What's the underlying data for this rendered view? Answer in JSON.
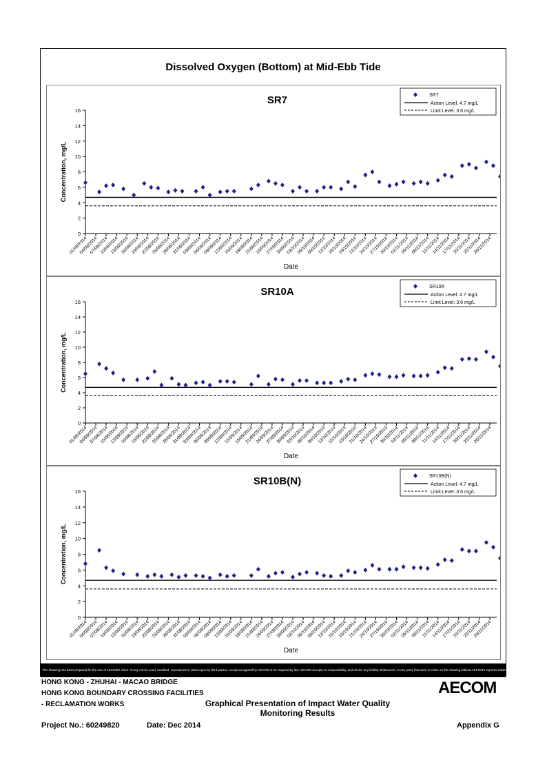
{
  "page_title": "Dissolved Oxygen (Bottom) at Mid-Ebb Tide",
  "disclaimer": "This Drawing has been prepared for the use of AECOM's client. It may not be used, modified, reproduced or relied upon by third parties, except as agreed by AECOM or as required by law. AECOM accepts no responsibility, and denies any liability whatsoever, to any party that uses or relies on this drawing without AECOM's express written consent.",
  "footer": {
    "project_line1": "HONG KONG - ZHUHAI - MACAO BRIDGE",
    "project_line2": "HONG KONG BOUNDARY CROSSING FACILITIES",
    "project_line3": "- RECLAMATION WORKS",
    "caption_line1": "Graphical Presentation of Impact Water Quality",
    "caption_line2": "Monitoring Results",
    "project_no": "Project No.: 60249820",
    "date": "Date: Dec 2014",
    "appendix": "Appendix G",
    "logo": "AECOM"
  },
  "colors": {
    "marker": "#1f1f8f",
    "line": "#000000",
    "frame": "#000000"
  },
  "chart_data": [
    {
      "type": "scatter",
      "title": "SR7",
      "xlabel": "Date",
      "ylabel": "Concentration, mg/L",
      "ylim": [
        0,
        16
      ],
      "yticks": [
        "0",
        "2",
        "4",
        "6",
        "8",
        "10",
        "12",
        "14",
        "16"
      ],
      "xlim": [
        "2014-08-01",
        "2014-11-28"
      ],
      "xticks": [
        "01/08/2014",
        "04/08/2014",
        "07/08/2014",
        "10/08/2014",
        "13/08/2014",
        "16/08/2014",
        "19/08/2014",
        "22/08/2014",
        "25/08/2014",
        "28/08/2014",
        "31/08/2014",
        "03/09/2014",
        "06/09/2014",
        "09/09/2014",
        "12/09/2014",
        "15/09/2014",
        "18/09/2014",
        "21/09/2014",
        "24/09/2014",
        "27/09/2014",
        "30/09/2014",
        "03/10/2014",
        "06/10/2014",
        "09/10/2014",
        "12/10/2014",
        "15/10/2014",
        "18/10/2014",
        "21/10/2014",
        "24/10/2014",
        "27/10/2014",
        "30/10/2014",
        "02/11/2014",
        "05/11/2014",
        "08/11/2014",
        "11/11/2014",
        "14/11/2014",
        "17/11/2014",
        "20/11/2014",
        "23/11/2014",
        "26/11/2014"
      ],
      "legend_position": "top-right",
      "legend": [
        "SR7",
        "Action Level: 4.7 mg/L",
        "Limit Level: 3.6 mg/L"
      ],
      "action_level": 4.7,
      "limit_level": 3.6,
      "series": [
        {
          "name": "SR7",
          "points": [
            [
              "2014-08-01",
              6.6
            ],
            [
              "2014-08-05",
              5.4
            ],
            [
              "2014-08-07",
              6.2
            ],
            [
              "2014-08-09",
              6.3
            ],
            [
              "2014-08-12",
              5.8
            ],
            [
              "2014-08-15",
              5.0
            ],
            [
              "2014-08-18",
              6.5
            ],
            [
              "2014-08-20",
              6.0
            ],
            [
              "2014-08-22",
              5.9
            ],
            [
              "2014-08-25",
              5.4
            ],
            [
              "2014-08-27",
              5.6
            ],
            [
              "2014-08-29",
              5.5
            ],
            [
              "2014-09-02",
              5.5
            ],
            [
              "2014-09-04",
              6.0
            ],
            [
              "2014-09-06",
              5.0
            ],
            [
              "2014-09-09",
              5.4
            ],
            [
              "2014-09-11",
              5.5
            ],
            [
              "2014-09-13",
              5.5
            ],
            [
              "2014-09-18",
              5.8
            ],
            [
              "2014-09-20",
              6.3
            ],
            [
              "2014-09-23",
              6.8
            ],
            [
              "2014-09-25",
              6.5
            ],
            [
              "2014-09-27",
              6.3
            ],
            [
              "2014-09-30",
              5.5
            ],
            [
              "2014-10-02",
              6.0
            ],
            [
              "2014-10-04",
              5.5
            ],
            [
              "2014-10-07",
              5.5
            ],
            [
              "2014-10-09",
              6.0
            ],
            [
              "2014-10-11",
              6.0
            ],
            [
              "2014-10-14",
              5.8
            ],
            [
              "2014-10-16",
              6.7
            ],
            [
              "2014-10-18",
              6.1
            ],
            [
              "2014-10-21",
              7.6
            ],
            [
              "2014-10-23",
              8.0
            ],
            [
              "2014-10-25",
              6.7
            ],
            [
              "2014-10-28",
              6.2
            ],
            [
              "2014-10-30",
              6.4
            ],
            [
              "2014-11-01",
              6.7
            ],
            [
              "2014-11-04",
              6.5
            ],
            [
              "2014-11-06",
              6.7
            ],
            [
              "2014-11-08",
              6.5
            ],
            [
              "2014-11-11",
              6.9
            ],
            [
              "2014-11-13",
              7.6
            ],
            [
              "2014-11-15",
              7.4
            ],
            [
              "2014-11-18",
              8.8
            ],
            [
              "2014-11-20",
              9.0
            ],
            [
              "2014-11-22",
              8.5
            ],
            [
              "2014-11-25",
              9.3
            ],
            [
              "2014-11-27",
              8.8
            ],
            [
              "2014-11-29",
              7.4
            ]
          ]
        }
      ]
    },
    {
      "type": "scatter",
      "title": "SR10A",
      "xlabel": "Date",
      "ylabel": "Concentration, mg/L",
      "ylim": [
        0,
        16
      ],
      "yticks": [
        "0",
        "2",
        "4",
        "6",
        "8",
        "10",
        "12",
        "14",
        "16"
      ],
      "xlim": [
        "2014-08-01",
        "2014-11-28"
      ],
      "xticks": [
        "01/08/2014",
        "04/08/2014",
        "07/08/2014",
        "10/08/2014",
        "13/08/2014",
        "16/08/2014",
        "19/08/2014",
        "22/08/2014",
        "25/08/2014",
        "28/08/2014",
        "31/08/2014",
        "03/09/2014",
        "06/09/2014",
        "09/09/2014",
        "12/09/2014",
        "15/09/2014",
        "18/09/2014",
        "21/09/2014",
        "24/09/2014",
        "27/09/2014",
        "30/09/2014",
        "03/10/2014",
        "06/10/2014",
        "09/10/2014",
        "12/10/2014",
        "15/10/2014",
        "18/10/2014",
        "21/10/2014",
        "24/10/2014",
        "27/10/2014",
        "30/10/2014",
        "02/11/2014",
        "05/11/2014",
        "08/11/2014",
        "11/11/2014",
        "14/11/2014",
        "17/11/2014",
        "20/11/2014",
        "23/11/2014",
        "26/11/2014"
      ],
      "legend_position": "top-right",
      "legend": [
        "SR10A",
        "Action Level: 4.7 mg/L",
        "Limit Level: 3.6 mg/L"
      ],
      "action_level": 4.7,
      "limit_level": 3.6,
      "series": [
        {
          "name": "SR10A",
          "points": [
            [
              "2014-08-01",
              6.5
            ],
            [
              "2014-08-05",
              7.8
            ],
            [
              "2014-08-07",
              7.2
            ],
            [
              "2014-08-09",
              6.6
            ],
            [
              "2014-08-12",
              5.7
            ],
            [
              "2014-08-16",
              5.7
            ],
            [
              "2014-08-19",
              5.9
            ],
            [
              "2014-08-21",
              6.8
            ],
            [
              "2014-08-23",
              5.0
            ],
            [
              "2014-08-26",
              5.9
            ],
            [
              "2014-08-28",
              5.1
            ],
            [
              "2014-08-30",
              5.0
            ],
            [
              "2014-09-02",
              5.3
            ],
            [
              "2014-09-04",
              5.4
            ],
            [
              "2014-09-06",
              5.0
            ],
            [
              "2014-09-09",
              5.5
            ],
            [
              "2014-09-11",
              5.5
            ],
            [
              "2014-09-13",
              5.4
            ],
            [
              "2014-09-18",
              5.1
            ],
            [
              "2014-09-20",
              6.2
            ],
            [
              "2014-09-23",
              5.1
            ],
            [
              "2014-09-25",
              5.8
            ],
            [
              "2014-09-27",
              5.7
            ],
            [
              "2014-09-30",
              5.1
            ],
            [
              "2014-10-02",
              5.6
            ],
            [
              "2014-10-04",
              5.6
            ],
            [
              "2014-10-07",
              5.3
            ],
            [
              "2014-10-09",
              5.3
            ],
            [
              "2014-10-11",
              5.3
            ],
            [
              "2014-10-14",
              5.5
            ],
            [
              "2014-10-16",
              5.8
            ],
            [
              "2014-10-18",
              5.7
            ],
            [
              "2014-10-21",
              6.3
            ],
            [
              "2014-10-23",
              6.5
            ],
            [
              "2014-10-25",
              6.4
            ],
            [
              "2014-10-28",
              6.1
            ],
            [
              "2014-10-30",
              6.1
            ],
            [
              "2014-11-01",
              6.3
            ],
            [
              "2014-11-04",
              6.2
            ],
            [
              "2014-11-06",
              6.2
            ],
            [
              "2014-11-08",
              6.3
            ],
            [
              "2014-11-11",
              6.7
            ],
            [
              "2014-11-13",
              7.3
            ],
            [
              "2014-11-15",
              7.2
            ],
            [
              "2014-11-18",
              8.4
            ],
            [
              "2014-11-20",
              8.5
            ],
            [
              "2014-11-22",
              8.4
            ],
            [
              "2014-11-25",
              9.4
            ],
            [
              "2014-11-27",
              8.7
            ],
            [
              "2014-11-29",
              7.5
            ]
          ]
        }
      ]
    },
    {
      "type": "scatter",
      "title": "SR10B(N)",
      "xlabel": "Date",
      "ylabel": "Concentration, mg/L",
      "ylim": [
        0,
        16
      ],
      "yticks": [
        "0",
        "2",
        "4",
        "6",
        "8",
        "10",
        "12",
        "14",
        "16"
      ],
      "xlim": [
        "2014-08-01",
        "2014-11-28"
      ],
      "xticks": [
        "01/08/2014",
        "04/08/2014",
        "07/08/2014",
        "10/08/2014",
        "13/08/2014",
        "16/08/2014",
        "19/08/2014",
        "22/08/2014",
        "25/08/2014",
        "28/08/2014",
        "31/08/2014",
        "03/09/2014",
        "06/09/2014",
        "09/09/2014",
        "12/09/2014",
        "15/09/2014",
        "18/09/2014",
        "21/09/2014",
        "24/09/2014",
        "27/09/2014",
        "30/09/2014",
        "03/10/2014",
        "06/10/2014",
        "09/10/2014",
        "12/10/2014",
        "15/10/2014",
        "18/10/2014",
        "21/10/2014",
        "24/10/2014",
        "27/10/2014",
        "30/10/2014",
        "02/11/2014",
        "05/11/2014",
        "08/11/2014",
        "11/11/2014",
        "14/11/2014",
        "17/11/2014",
        "20/11/2014",
        "23/11/2014",
        "26/11/2014"
      ],
      "legend_position": "top-right",
      "legend": [
        "SR10B(N)",
        "Action Level: 4.7 mg/L",
        "Limit Level: 3.6 mg/L"
      ],
      "action_level": 4.7,
      "limit_level": 3.6,
      "series": [
        {
          "name": "SR10B(N)",
          "points": [
            [
              "2014-08-01",
              6.8
            ],
            [
              "2014-08-05",
              8.5
            ],
            [
              "2014-08-07",
              6.3
            ],
            [
              "2014-08-09",
              5.9
            ],
            [
              "2014-08-12",
              5.5
            ],
            [
              "2014-08-16",
              5.4
            ],
            [
              "2014-08-19",
              5.2
            ],
            [
              "2014-08-21",
              5.4
            ],
            [
              "2014-08-23",
              5.2
            ],
            [
              "2014-08-26",
              5.4
            ],
            [
              "2014-08-28",
              5.1
            ],
            [
              "2014-08-30",
              5.3
            ],
            [
              "2014-09-02",
              5.3
            ],
            [
              "2014-09-04",
              5.2
            ],
            [
              "2014-09-06",
              5.0
            ],
            [
              "2014-09-09",
              5.4
            ],
            [
              "2014-09-11",
              5.2
            ],
            [
              "2014-09-13",
              5.3
            ],
            [
              "2014-09-18",
              5.3
            ],
            [
              "2014-09-20",
              6.1
            ],
            [
              "2014-09-23",
              5.2
            ],
            [
              "2014-09-25",
              5.6
            ],
            [
              "2014-09-27",
              5.7
            ],
            [
              "2014-09-30",
              5.1
            ],
            [
              "2014-10-02",
              5.5
            ],
            [
              "2014-10-04",
              5.7
            ],
            [
              "2014-10-07",
              5.6
            ],
            [
              "2014-10-09",
              5.3
            ],
            [
              "2014-10-11",
              5.2
            ],
            [
              "2014-10-14",
              5.3
            ],
            [
              "2014-10-16",
              5.9
            ],
            [
              "2014-10-18",
              5.7
            ],
            [
              "2014-10-21",
              6.0
            ],
            [
              "2014-10-23",
              6.6
            ],
            [
              "2014-10-25",
              6.1
            ],
            [
              "2014-10-28",
              6.1
            ],
            [
              "2014-10-30",
              6.1
            ],
            [
              "2014-11-01",
              6.4
            ],
            [
              "2014-11-04",
              6.3
            ],
            [
              "2014-11-06",
              6.3
            ],
            [
              "2014-11-08",
              6.2
            ],
            [
              "2014-11-11",
              6.7
            ],
            [
              "2014-11-13",
              7.3
            ],
            [
              "2014-11-15",
              7.2
            ],
            [
              "2014-11-18",
              8.6
            ],
            [
              "2014-11-20",
              8.4
            ],
            [
              "2014-11-22",
              8.4
            ],
            [
              "2014-11-25",
              9.5
            ],
            [
              "2014-11-27",
              8.9
            ],
            [
              "2014-11-29",
              7.5
            ]
          ]
        }
      ]
    }
  ]
}
